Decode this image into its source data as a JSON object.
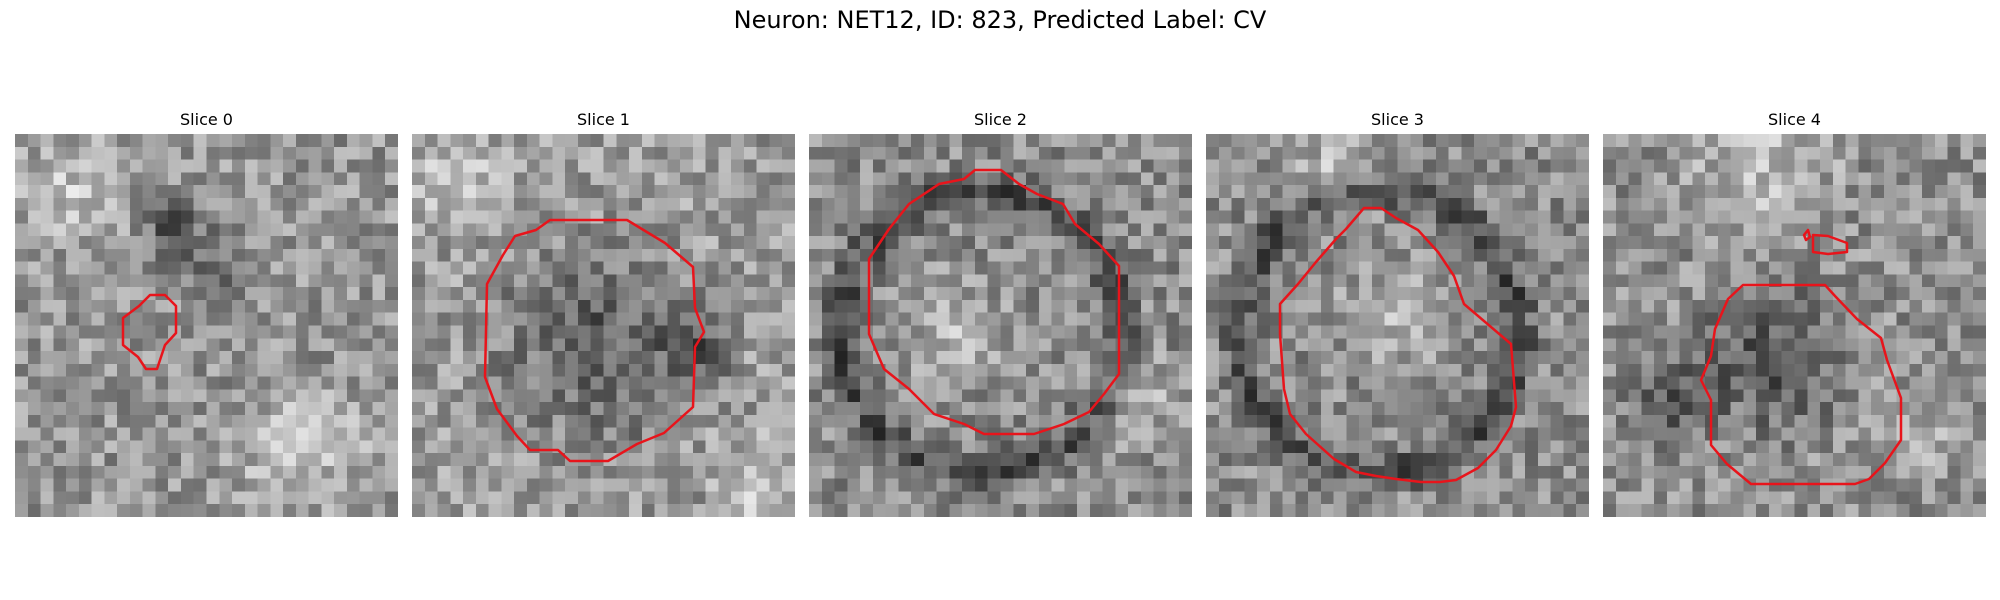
{
  "figure": {
    "title": "Neuron: NET12, ID: 823, Predicted Label: CV"
  },
  "panels": [
    {
      "title": "Slice 0"
    },
    {
      "title": "Slice 1"
    },
    {
      "title": "Slice 2"
    },
    {
      "title": "Slice 3"
    },
    {
      "title": "Slice 4"
    }
  ],
  "colors": {
    "contour": "#e8141b",
    "colormap": "gray"
  }
}
